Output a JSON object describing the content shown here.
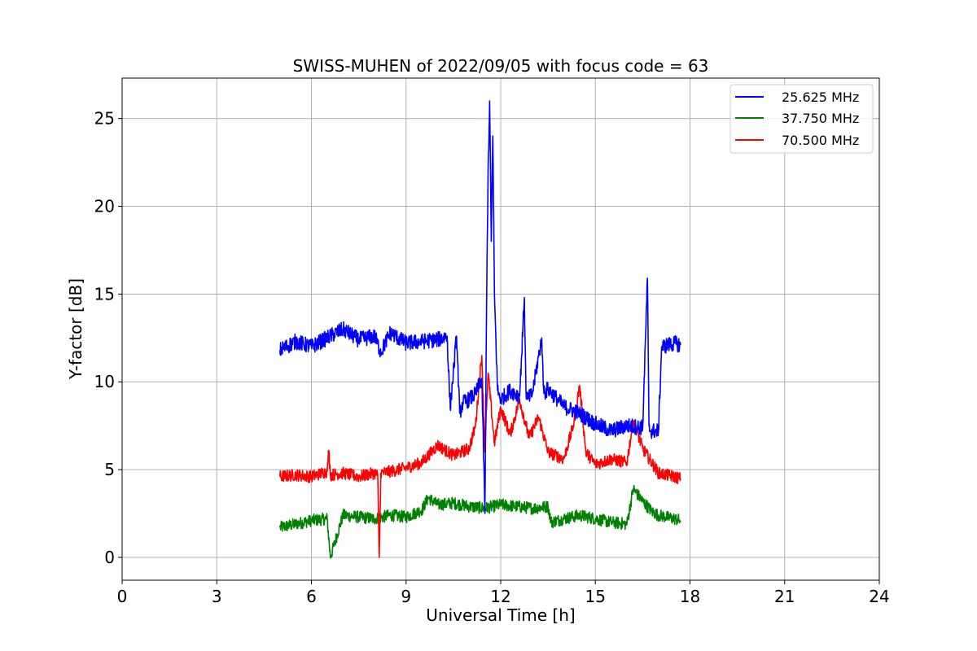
{
  "chart_data": {
    "type": "line",
    "title": "SWISS-MUHEN of 2022/09/05 with focus code = 63",
    "xlabel": "Universal Time [h]",
    "ylabel": "Y-factor [dB]",
    "xlim": [
      0,
      24
    ],
    "ylim": [
      -1.3,
      27.3
    ],
    "xticks": [
      0,
      3,
      6,
      9,
      12,
      15,
      18,
      21,
      24
    ],
    "yticks": [
      0,
      5,
      10,
      15,
      20,
      25
    ],
    "grid": true,
    "legend_position": "upper right",
    "series": [
      {
        "name": "25.625 MHz",
        "color": "#0000ff",
        "x": [
          5.0,
          5.5,
          6.0,
          6.5,
          7.0,
          7.5,
          8.0,
          8.2,
          8.5,
          9.0,
          9.5,
          10.0,
          10.3,
          10.4,
          10.6,
          10.7,
          10.8,
          11.0,
          11.2,
          11.4,
          11.5,
          11.55,
          11.6,
          11.65,
          11.7,
          11.75,
          11.8,
          11.9,
          12.0,
          12.3,
          12.6,
          12.75,
          12.8,
          12.85,
          13.0,
          13.3,
          13.35,
          13.4,
          13.5,
          13.8,
          14.0,
          14.5,
          15.0,
          15.5,
          16.0,
          16.5,
          16.65,
          16.7,
          16.75,
          17.0,
          17.1,
          17.5,
          17.7
        ],
        "y": [
          11.8,
          12.3,
          12.0,
          12.5,
          13.0,
          12.4,
          12.6,
          11.7,
          12.8,
          12.2,
          12.3,
          12.4,
          12.6,
          8.5,
          12.6,
          8.2,
          8.8,
          9.0,
          9.3,
          10.2,
          2.5,
          14.0,
          22.0,
          26.0,
          18.0,
          24.0,
          15.0,
          9.5,
          9.0,
          9.5,
          9.2,
          14.8,
          9.5,
          9.0,
          9.3,
          12.5,
          9.8,
          9.4,
          9.6,
          9.0,
          8.6,
          8.2,
          7.6,
          7.2,
          7.5,
          7.4,
          15.9,
          7.5,
          7.2,
          7.2,
          12.0,
          12.2,
          12.1
        ]
      },
      {
        "name": "37.750 MHz",
        "color": "#008000",
        "x": [
          5.0,
          5.5,
          6.0,
          6.5,
          6.6,
          7.0,
          7.5,
          8.0,
          8.5,
          9.0,
          9.5,
          9.7,
          10.0,
          10.5,
          11.0,
          11.5,
          12.0,
          12.5,
          13.0,
          13.5,
          13.6,
          14.0,
          14.5,
          15.0,
          15.5,
          16.0,
          16.2,
          16.5,
          16.8,
          17.0,
          17.5,
          17.7
        ],
        "y": [
          1.7,
          1.9,
          2.1,
          2.2,
          0.0,
          2.4,
          2.3,
          2.2,
          2.4,
          2.3,
          2.7,
          3.4,
          3.0,
          3.1,
          2.9,
          2.8,
          3.0,
          2.9,
          2.8,
          2.9,
          2.0,
          2.2,
          2.4,
          2.2,
          2.0,
          1.9,
          3.9,
          3.2,
          2.6,
          2.4,
          2.2,
          2.1
        ]
      },
      {
        "name": "70.500 MHz",
        "color": "#ff0000",
        "x": [
          5.0,
          5.5,
          6.0,
          6.5,
          6.55,
          6.6,
          7.0,
          7.5,
          8.0,
          8.1,
          8.15,
          8.2,
          8.5,
          9.0,
          9.5,
          10.0,
          10.5,
          11.0,
          11.2,
          11.4,
          11.5,
          11.6,
          11.8,
          12.0,
          12.3,
          12.6,
          12.9,
          13.2,
          13.5,
          14.0,
          14.3,
          14.5,
          14.7,
          15.0,
          15.5,
          16.0,
          16.2,
          16.5,
          17.0,
          17.5,
          17.7
        ],
        "y": [
          4.6,
          4.7,
          4.6,
          4.9,
          6.1,
          4.7,
          4.8,
          4.6,
          4.8,
          4.7,
          0.0,
          4.8,
          4.9,
          5.1,
          5.4,
          6.4,
          5.8,
          6.2,
          7.5,
          11.5,
          6.0,
          10.5,
          6.5,
          8.5,
          7.0,
          9.0,
          6.8,
          8.0,
          6.0,
          5.6,
          7.5,
          9.8,
          6.0,
          5.3,
          5.6,
          5.4,
          7.8,
          6.2,
          4.8,
          4.6,
          4.5
        ]
      }
    ]
  }
}
